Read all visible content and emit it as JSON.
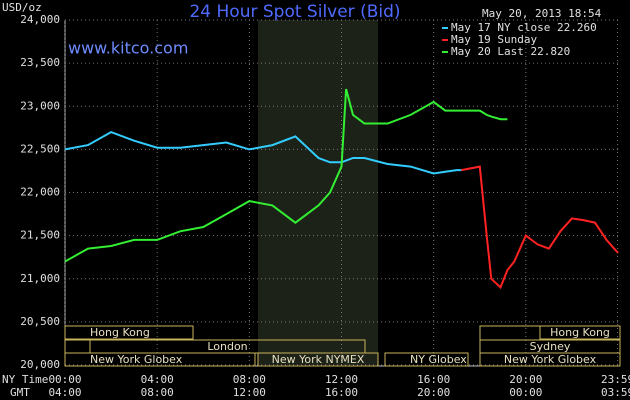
{
  "chart_data": {
    "type": "line",
    "title": "24 Hour Spot Silver (Bid)",
    "source": "www.kitco.com",
    "timestamp": "May 20, 2013 18:54",
    "y_label": "USD/oz",
    "x_label": "NY Time",
    "secondary_x_label": "GMT",
    "x": [
      0,
      1,
      2,
      3,
      4,
      5,
      6,
      7,
      8,
      9,
      10,
      11,
      11.5,
      12,
      12.2,
      12.5,
      13,
      14,
      15,
      16,
      16.5,
      17,
      17.2,
      18,
      18.3,
      18.5,
      18.9,
      19.2,
      19.5,
      20,
      20.5,
      21,
      21.5,
      22,
      22.5,
      23,
      23.5,
      24
    ],
    "series": [
      {
        "name": "May 17 NY close 22.260",
        "color": "#33ccff",
        "values": [
          22.5,
          22.55,
          22.7,
          22.6,
          22.52,
          22.52,
          22.55,
          22.58,
          22.5,
          22.55,
          22.65,
          22.4,
          22.35,
          22.35,
          22.37,
          22.4,
          22.4,
          22.33,
          22.3,
          22.22,
          22.24,
          22.26,
          22.26,
          null,
          null,
          null,
          null,
          null,
          null,
          null,
          null,
          null,
          null,
          null,
          null,
          null,
          null,
          null
        ]
      },
      {
        "name": "May 19 Sunday",
        "color": "#ff2222",
        "values": [
          null,
          null,
          null,
          null,
          null,
          null,
          null,
          null,
          null,
          null,
          null,
          null,
          null,
          null,
          null,
          null,
          null,
          null,
          null,
          null,
          null,
          null,
          22.26,
          22.3,
          21.5,
          21.0,
          20.9,
          21.1,
          21.2,
          21.5,
          21.4,
          21.35,
          21.55,
          21.7,
          21.68,
          21.65,
          21.45,
          21.3
        ]
      },
      {
        "name": "May 20 Last 22.820",
        "color": "#33ee33",
        "values": [
          21.2,
          21.35,
          21.38,
          21.45,
          21.45,
          21.55,
          21.6,
          21.75,
          21.9,
          21.85,
          21.65,
          21.85,
          22.0,
          22.3,
          23.2,
          22.9,
          22.8,
          22.8,
          22.9,
          23.05,
          22.95,
          22.95,
          22.95,
          22.95,
          22.9,
          22.88,
          22.85,
          22.85,
          null,
          null,
          null,
          null,
          null,
          null,
          null,
          null,
          null,
          null
        ]
      }
    ],
    "xlim": [
      0,
      24
    ],
    "xticks": [
      {
        "value": 0,
        "label": "00:00"
      },
      {
        "value": 4,
        "label": "04:00"
      },
      {
        "value": 8,
        "label": "08:00"
      },
      {
        "value": 12,
        "label": "12:00"
      },
      {
        "value": 16,
        "label": "16:00"
      },
      {
        "value": 20,
        "label": "20:00"
      },
      {
        "value": 23.983,
        "label": "23:59"
      }
    ],
    "secondary_xticks": [
      {
        "value": 0,
        "label": "04:00"
      },
      {
        "value": 4,
        "label": "08:00"
      },
      {
        "value": 8,
        "label": "12:00"
      },
      {
        "value": 12,
        "label": "16:00"
      },
      {
        "value": 16,
        "label": "20:00"
      },
      {
        "value": 20,
        "label": "00:00"
      },
      {
        "value": 23.983,
        "label": "03:59"
      }
    ],
    "ylim": [
      20,
      24
    ],
    "yticks": [
      {
        "value": 20,
        "label": "20,000"
      },
      {
        "value": 20.5,
        "label": "20,500"
      },
      {
        "value": 21,
        "label": "21,000"
      },
      {
        "value": 21.5,
        "label": "21,500"
      },
      {
        "value": 22,
        "label": "22,000"
      },
      {
        "value": 22.5,
        "label": "22,500"
      },
      {
        "value": 23,
        "label": "23,000"
      },
      {
        "value": 23.5,
        "label": "23,500"
      },
      {
        "value": 24,
        "label": "24,000"
      }
    ],
    "grid": true,
    "sessions": [
      "Hong Kong",
      "London",
      "New York Globex",
      "New York NYMEX",
      "NY Globex",
      "Hong Kong",
      "Sydney",
      "New York Globex"
    ]
  }
}
